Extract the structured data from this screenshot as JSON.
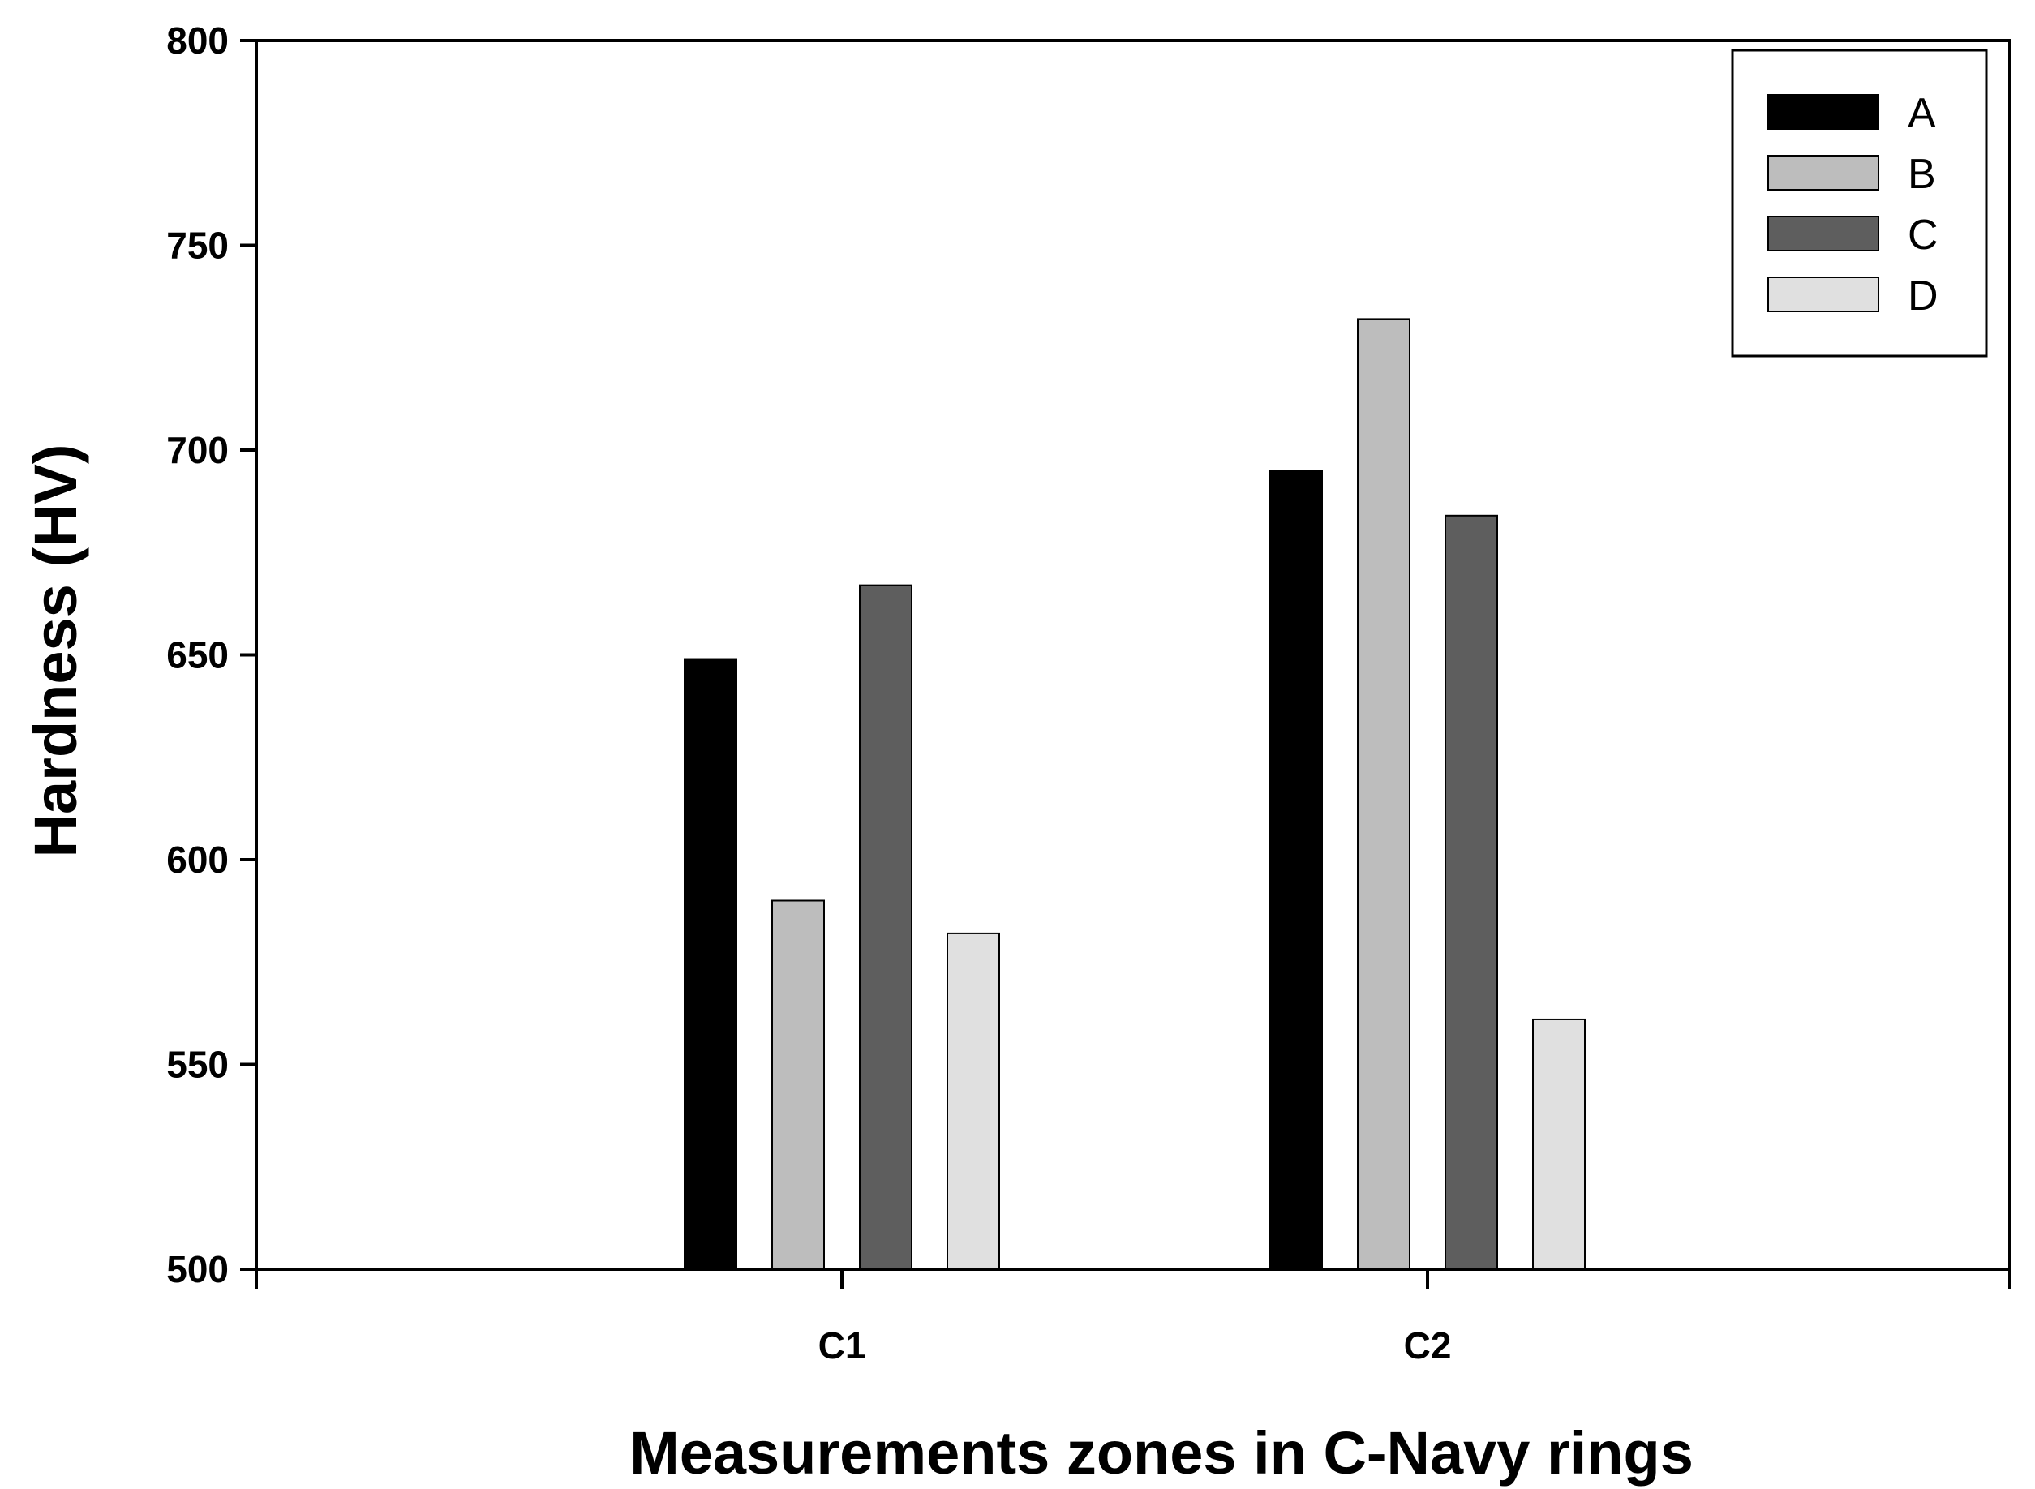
{
  "chart_data": {
    "type": "bar",
    "title": "",
    "xlabel": "Measurements zones in C-Navy rings",
    "ylabel": "Hardness (HV)",
    "categories": [
      "C1",
      "C2"
    ],
    "series": [
      {
        "name": "A",
        "values": [
          649,
          695
        ],
        "color": "#000000"
      },
      {
        "name": "B",
        "values": [
          590,
          732
        ],
        "color": "#bdbdbd"
      },
      {
        "name": "C",
        "values": [
          667,
          684
        ],
        "color": "#5e5e5e"
      },
      {
        "name": "D",
        "values": [
          582,
          561
        ],
        "color": "#e0e0e0"
      }
    ],
    "ylim": [
      500,
      800
    ],
    "yticks": [
      500,
      550,
      600,
      650,
      700,
      750,
      800
    ],
    "grid": false,
    "legend_position": "top-right"
  }
}
